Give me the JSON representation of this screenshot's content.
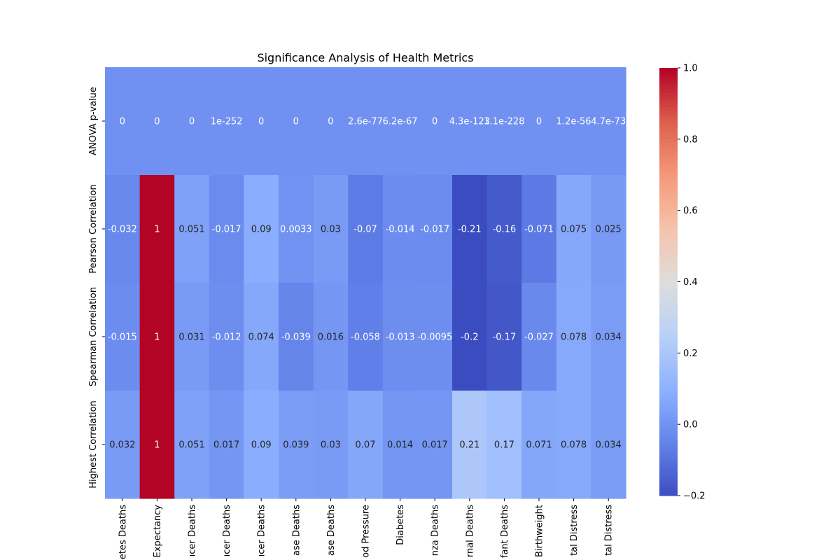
{
  "chart_data": {
    "type": "heatmap",
    "title": "Significance Analysis of Health Metrics",
    "xlabel": "",
    "ylabel": "",
    "colormap": "coolwarm",
    "vmin": -0.2,
    "vmax": 1.0,
    "colorbar_ticks": [
      -0.2,
      0.0,
      0.2,
      0.4,
      0.6,
      0.8,
      1.0
    ],
    "colorbar_tick_labels": [
      "−0.2",
      "0.0",
      "0.2",
      "0.4",
      "0.6",
      "0.8",
      "1.0"
    ],
    "x_tick_labels": [
      "etes Deaths",
      "Expectancy",
      "ıcer Deaths",
      "ıcer Deaths",
      "ıcer Deaths",
      "ase Deaths",
      "ase Deaths",
      "od Pressure",
      "Diabetes",
      "nza Deaths",
      "rnal Deaths",
      "fant Deaths",
      "Birthweight",
      "tal Distress",
      "tal Distress"
    ],
    "y_tick_labels": [
      "ANOVA p-value",
      "Pearson Correlation",
      "Spearman Correlation",
      "Highest Correlation"
    ],
    "values": [
      [
        0,
        0,
        0,
        1e-252,
        0,
        0,
        0,
        2.6e-77,
        6.2e-67,
        0,
        4.3e-123,
        1.1e-228,
        0,
        1.2e-56,
        4.7e-73
      ],
      [
        -0.032,
        1,
        0.051,
        -0.017,
        0.09,
        0.0033,
        0.03,
        -0.07,
        -0.014,
        -0.017,
        -0.21,
        -0.16,
        -0.071,
        0.075,
        0.025
      ],
      [
        -0.015,
        1,
        0.031,
        -0.012,
        0.074,
        -0.039,
        0.016,
        -0.058,
        -0.013,
        -0.0095,
        -0.2,
        -0.17,
        -0.027,
        0.078,
        0.034
      ],
      [
        0.032,
        1,
        0.051,
        0.017,
        0.09,
        0.039,
        0.03,
        0.07,
        0.014,
        0.017,
        0.21,
        0.17,
        0.071,
        0.078,
        0.034
      ]
    ],
    "cell_labels": [
      [
        "0",
        "0",
        "0",
        "1e-252",
        "0",
        "0",
        "0",
        "2.6e-77",
        "6.2e-67",
        "0",
        "4.3e-123",
        "1.1e-228",
        "0",
        "1.2e-56",
        "4.7e-73"
      ],
      [
        "-0.032",
        "1",
        "0.051",
        "-0.017",
        "0.09",
        "0.0033",
        "0.03",
        "-0.07",
        "-0.014",
        "-0.017",
        "-0.21",
        "-0.16",
        "-0.071",
        "0.075",
        "0.025"
      ],
      [
        "-0.015",
        "1",
        "0.031",
        "-0.012",
        "0.074",
        "-0.039",
        "0.016",
        "-0.058",
        "-0.013",
        "-0.0095",
        "-0.2",
        "-0.17",
        "-0.027",
        "0.078",
        "0.034"
      ],
      [
        "0.032",
        "1",
        "0.051",
        "0.017",
        "0.09",
        "0.039",
        "0.03",
        "0.07",
        "0.014",
        "0.017",
        "0.21",
        "0.17",
        "0.071",
        "0.078",
        "0.034"
      ]
    ],
    "grid": false,
    "colorbar_position": "right"
  }
}
